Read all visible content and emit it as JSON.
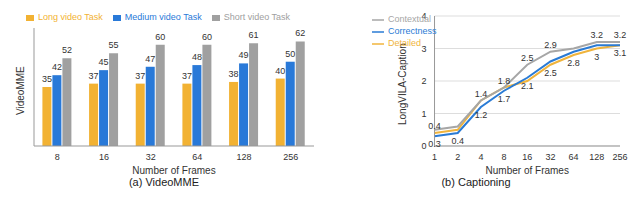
{
  "chart_data": [
    {
      "type": "bar",
      "title": "(a) VideoMME",
      "x_label": "Number of Frames",
      "y_label": "VideoMME",
      "categories": [
        "8",
        "16",
        "32",
        "64",
        "128",
        "256"
      ],
      "series": [
        {
          "name": "Long video Task",
          "color": "#f2b233",
          "values": [
            35,
            37,
            37,
            37,
            38,
            40
          ]
        },
        {
          "name": "Medium video Task",
          "color": "#2979d8",
          "values": [
            42,
            45,
            47,
            48,
            49,
            50
          ]
        },
        {
          "name": "Short video Task",
          "color": "#a0a0a0",
          "values": [
            52,
            55,
            60,
            60,
            61,
            62
          ]
        }
      ],
      "ylim": [
        0,
        70
      ],
      "grid": false,
      "legend": "top",
      "data_labels": true,
      "tick_labels": "x"
    },
    {
      "type": "line",
      "title": "(b) Captioning",
      "x_label": "Number of Frames",
      "y_label": "LongVILA-Caption",
      "categories": [
        "1",
        "2",
        "4",
        "8",
        "16",
        "32",
        "64",
        "128",
        "256"
      ],
      "series": [
        {
          "name": "Detailed",
          "color": "#f0b43c",
          "values": [
            0.4,
            0.5,
            1.4,
            1.8,
            2.0,
            2.5,
            2.8,
            3.0,
            3.1
          ],
          "value_labels": [
            "0.4",
            null,
            "1.4",
            "1.8",
            null,
            "2.5",
            "2.8",
            "3",
            "3.1"
          ]
        },
        {
          "name": "Correctness",
          "color": "#2a7bd5",
          "values": [
            0.3,
            0.4,
            1.2,
            1.7,
            2.1,
            2.6,
            2.9,
            3.1,
            3.1
          ],
          "value_labels": [
            "0.3",
            "0.4",
            "1.2",
            "1.7",
            "2.1",
            null,
            null,
            null,
            null
          ]
        },
        {
          "name": "Contextual",
          "color": "#a6a6a6",
          "values": [
            0.5,
            0.6,
            1.4,
            1.8,
            2.5,
            2.9,
            3.0,
            3.2,
            3.2
          ],
          "value_labels": [
            null,
            null,
            null,
            null,
            "2.5",
            "2.9",
            null,
            "3.2",
            "3.2"
          ]
        }
      ],
      "ylim": [
        0,
        4
      ],
      "yticks": [
        0,
        1,
        2,
        3,
        4
      ],
      "grid": true,
      "legend": "upper left",
      "data_labels": true
    }
  ]
}
